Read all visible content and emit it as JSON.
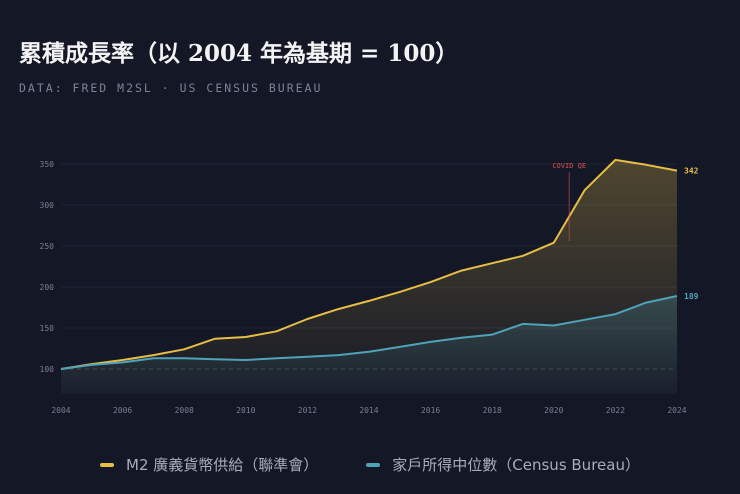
{
  "chart_data": {
    "type": "area",
    "title": "累積成長率（以 2004 年為基期 = 100）",
    "subtitle": "DATA: FRED M2SL · US CENSUS BUREAU",
    "x": [
      2004,
      2005,
      2006,
      2007,
      2008,
      2009,
      2010,
      2011,
      2012,
      2013,
      2014,
      2015,
      2016,
      2017,
      2018,
      2019,
      2020,
      2021,
      2022,
      2023,
      2024
    ],
    "xticks": [
      "2004",
      "2006",
      "2008",
      "2010",
      "2012",
      "2014",
      "2016",
      "2018",
      "2020",
      "2022",
      "2024"
    ],
    "yticks": [
      "100",
      "150",
      "200",
      "250",
      "300",
      "350"
    ],
    "xlim": [
      2004,
      2024
    ],
    "ylim": [
      70,
      360
    ],
    "grid": true,
    "baseline": 100,
    "legend_position": "bottom",
    "series": [
      {
        "name": "M2 廣義貨幣供給（聯準會）",
        "color": "#e6be45",
        "end_label": "342",
        "values": [
          100,
          106,
          111,
          117,
          124,
          137,
          139,
          146,
          161,
          173,
          183,
          194,
          206,
          220,
          229,
          238,
          254,
          318,
          355,
          349,
          342
        ]
      },
      {
        "name": "家戶所得中位數（Census Bureau）",
        "color": "#4ea3b8",
        "end_label": "189",
        "values": [
          100,
          105,
          108,
          113,
          113,
          112,
          111,
          113,
          115,
          117,
          121,
          127,
          133,
          138,
          142,
          155,
          153,
          160,
          167,
          181,
          189
        ]
      }
    ],
    "annotations": [
      {
        "text": "COVID QE",
        "x": 2020.5,
        "color": "#d9534f"
      }
    ]
  }
}
